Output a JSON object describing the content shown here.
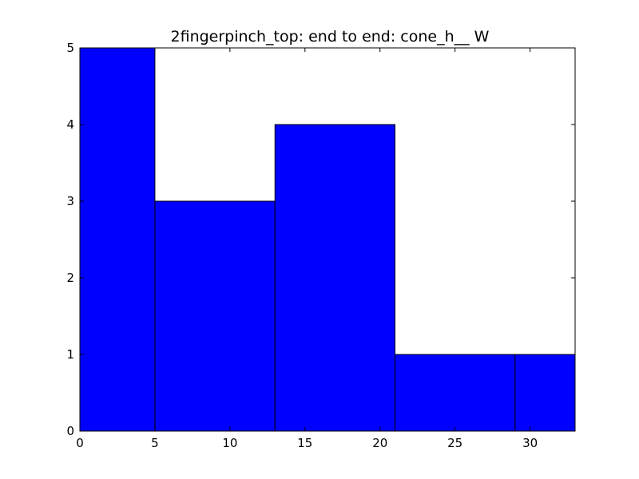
{
  "chart_data": {
    "type": "bar",
    "title": "2fingerpinch_top: end to end: cone_h__ W",
    "xlabel": "",
    "ylabel": "",
    "bins": [
      {
        "start": 0,
        "end": 5,
        "value": 5
      },
      {
        "start": 5,
        "end": 13,
        "value": 3
      },
      {
        "start": 13,
        "end": 21,
        "value": 4
      },
      {
        "start": 21,
        "end": 29,
        "value": 1
      },
      {
        "start": 29,
        "end": 33,
        "value": 1
      }
    ],
    "xlim": [
      0,
      33
    ],
    "ylim": [
      0,
      5
    ],
    "xticks": [
      0,
      5,
      10,
      15,
      20,
      25,
      30
    ],
    "yticks": [
      0,
      1,
      2,
      3,
      4,
      5
    ],
    "bar_color": "#0000ff",
    "edge_color": "#000000",
    "grid": false
  }
}
